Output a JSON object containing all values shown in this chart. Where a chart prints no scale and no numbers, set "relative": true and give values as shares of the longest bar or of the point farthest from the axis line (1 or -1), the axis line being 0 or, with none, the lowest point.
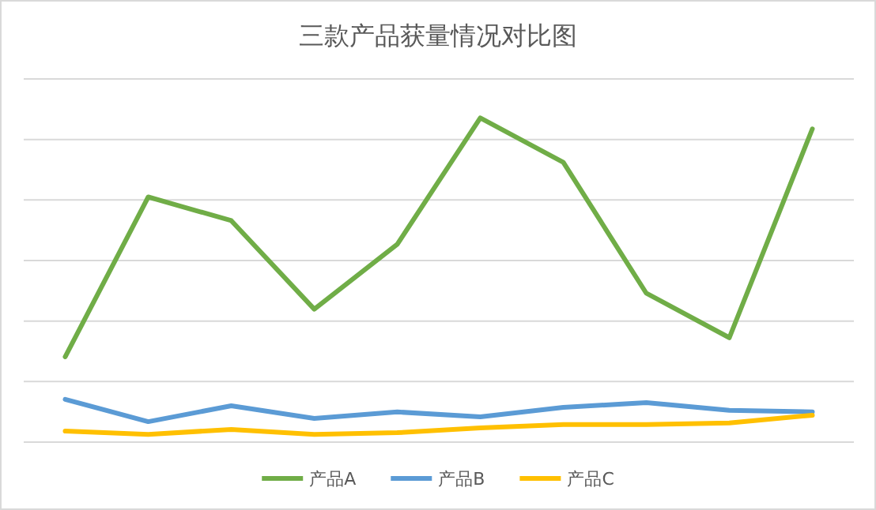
{
  "chart_data": {
    "type": "line",
    "title": "三款产品获量情况对比图",
    "relative": true,
    "grid": "y",
    "legend": "bottom",
    "categories": [
      null,
      null,
      null,
      null,
      null,
      null,
      null,
      null,
      null,
      null
    ],
    "series": [
      {
        "name": "产品A",
        "color": "#70ad47",
        "values": [
          0.263,
          0.756,
          0.683,
          0.41,
          0.61,
          1,
          0.863,
          0.459,
          0.322,
          0.966
        ]
      },
      {
        "name": "产品B",
        "color": "#5b9bd5",
        "values": [
          0.132,
          0.063,
          0.112,
          0.073,
          0.093,
          0.078,
          0.107,
          0.122,
          0.098,
          0.093
        ]
      },
      {
        "name": "产品C",
        "color": "#ffc000",
        "values": [
          0.034,
          0.024,
          0.039,
          0.024,
          0.029,
          0.044,
          0.054,
          0.054,
          0.059,
          0.083
        ]
      }
    ]
  }
}
